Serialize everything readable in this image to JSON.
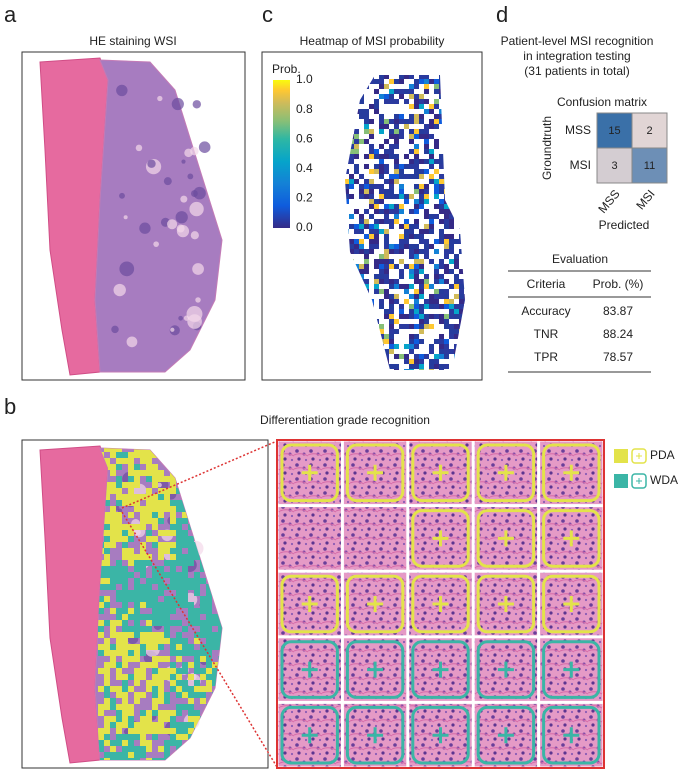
{
  "panel_a": {
    "letter": "a",
    "title": "HE staining WSI"
  },
  "panel_c": {
    "letter": "c",
    "title": "Heatmap of MSI probability",
    "colorbar": {
      "label": "Prob.",
      "ticks": [
        "0.0",
        "0.2",
        "0.4",
        "0.6",
        "0.8",
        "1.0"
      ]
    }
  },
  "panel_d": {
    "letter": "d",
    "title_lines": [
      "Patient-level MSI recognition",
      "in integration testing",
      "(31 patients in total)"
    ],
    "confusion": {
      "title": "Confusion matrix",
      "ylabel": "Groundtruth",
      "xlabel": "Predicted",
      "rows": [
        "MSS",
        "MSI"
      ],
      "cols": [
        "MSS",
        "MSI"
      ],
      "cells": [
        [
          15,
          2
        ],
        [
          3,
          11
        ]
      ]
    },
    "evaluation": {
      "title": "Evaluation",
      "header": [
        "Criteria",
        "Prob. (%)"
      ],
      "rows": [
        [
          "Accuracy",
          83.87
        ],
        [
          "TNR",
          88.24
        ],
        [
          "TPR",
          78.57
        ]
      ]
    }
  },
  "panel_b": {
    "letter": "b",
    "title": "Differentiation grade recognition",
    "legend": [
      {
        "label": "PDA",
        "color": "#e3e34a"
      },
      {
        "label": "WDA",
        "color": "#3bb5a6"
      }
    ]
  }
}
